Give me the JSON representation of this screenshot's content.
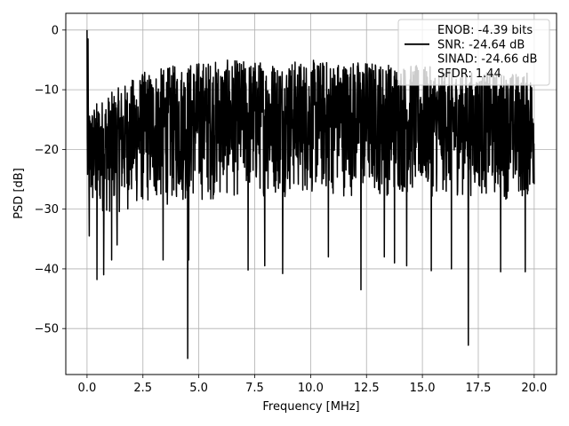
{
  "chart_data": {
    "type": "line",
    "title": "",
    "xlabel": "Frequency [MHz]",
    "ylabel": "PSD [dB]",
    "xlim": [
      -0.95,
      21.0
    ],
    "ylim": [
      -57.7,
      2.8
    ],
    "xticks": [
      0.0,
      2.5,
      5.0,
      7.5,
      10.0,
      12.5,
      15.0,
      17.5,
      20.0
    ],
    "xtick_labels": [
      "0.0",
      "2.5",
      "5.0",
      "7.5",
      "10.0",
      "12.5",
      "15.0",
      "17.5",
      "20.0"
    ],
    "yticks": [
      0,
      -10,
      -20,
      -30,
      -40,
      -50
    ],
    "ytick_labels": [
      "0",
      "−10",
      "−20",
      "−30",
      "−40",
      "−50"
    ],
    "grid": true,
    "legend_position": "top-right",
    "legend": [
      {
        "label": "ENOB: -4.39 bits",
        "show_line": false
      },
      {
        "label": "SNR: -24.64 dB",
        "show_line": true
      },
      {
        "label": "SINAD: -24.66 dB",
        "show_line": false
      },
      {
        "label": "SFDR: 1.44",
        "show_line": false
      }
    ],
    "series": [
      {
        "color": "#000000",
        "x_range": [
          0.0,
          20.0
        ],
        "noise_band_top": [
          -13,
          -7,
          -5,
          -5,
          -5,
          -5,
          -6,
          -7,
          -7
        ],
        "noise_band_bottom": [
          -32,
          -30,
          -29,
          -28,
          -28,
          -28,
          -28,
          -28,
          -29
        ],
        "band_x": [
          0.0,
          2.5,
          5.0,
          7.5,
          10.0,
          12.5,
          15.0,
          17.5,
          20.0
        ],
        "peaks": [
          {
            "x": 0.0,
            "y": 0.0
          },
          {
            "x": 0.05,
            "y": -1.5
          },
          {
            "x": 0.1,
            "y": -4.0
          }
        ],
        "dips": [
          {
            "x": 0.1,
            "y": -34.5
          },
          {
            "x": 0.45,
            "y": -41.8
          },
          {
            "x": 0.75,
            "y": -41.0
          },
          {
            "x": 1.1,
            "y": -38.5
          },
          {
            "x": 1.35,
            "y": -36.0
          },
          {
            "x": 3.4,
            "y": -38.5
          },
          {
            "x": 4.5,
            "y": -55.0
          },
          {
            "x": 4.55,
            "y": -38.5
          },
          {
            "x": 7.2,
            "y": -40.2
          },
          {
            "x": 7.95,
            "y": -39.5
          },
          {
            "x": 8.75,
            "y": -40.8
          },
          {
            "x": 10.8,
            "y": -38.0
          },
          {
            "x": 12.25,
            "y": -43.5
          },
          {
            "x": 13.3,
            "y": -38.0
          },
          {
            "x": 13.75,
            "y": -39.0
          },
          {
            "x": 14.3,
            "y": -39.5
          },
          {
            "x": 15.4,
            "y": -40.3
          },
          {
            "x": 16.3,
            "y": -40.0
          },
          {
            "x": 17.05,
            "y": -52.8
          },
          {
            "x": 18.5,
            "y": -40.5
          },
          {
            "x": 19.6,
            "y": -40.5
          }
        ]
      }
    ]
  }
}
